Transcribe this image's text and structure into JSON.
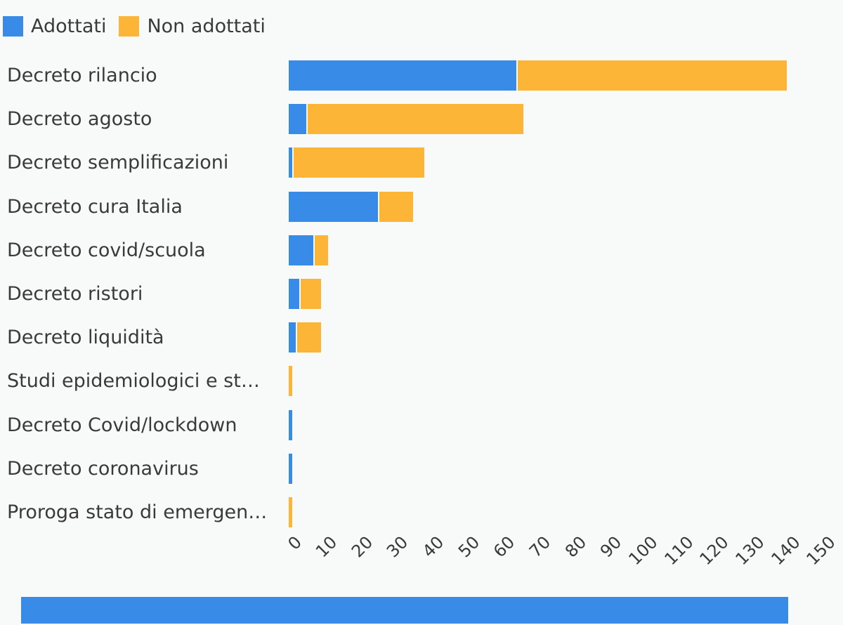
{
  "colors": {
    "background": "#F8F9F9",
    "text": "#3A3A3A",
    "adottati": "#398BE8",
    "non_adottati": "#FDB537",
    "bottom_strip": "#398BE8"
  },
  "legend": {
    "items": [
      {
        "label": "Adottati",
        "color": "#398BE8"
      },
      {
        "label": "Non adottati",
        "color": "#FDB537"
      }
    ]
  },
  "chart_data": {
    "type": "bar",
    "orientation": "horizontal",
    "stacked": true,
    "title": "",
    "xlabel": "",
    "ylabel": "",
    "xlim": [
      0,
      150
    ],
    "grid": false,
    "legend_position": "top-left",
    "categories": [
      "Decreto rilancio",
      "Decreto agosto",
      "Decreto semplificazioni",
      "Decreto cura Italia",
      "Decreto covid/scuola",
      "Decreto ristori",
      "Decreto liquidità",
      "Studi epidemiologici e st…",
      "Decreto Covid/lockdown",
      "Decreto coronavirus",
      "Proroga stato di emergen…"
    ],
    "series": [
      {
        "name": "Adottati",
        "color": "#398BE8",
        "values": [
          64,
          5,
          1,
          25,
          7,
          3,
          2,
          0,
          1,
          1,
          0
        ]
      },
      {
        "name": "Non adottati",
        "color": "#FDB537",
        "values": [
          76,
          61,
          37,
          10,
          4,
          6,
          7,
          1,
          0,
          0,
          1
        ]
      }
    ],
    "x_ticks": [
      0,
      10,
      20,
      30,
      40,
      50,
      60,
      70,
      80,
      90,
      100,
      110,
      120,
      130,
      140,
      150
    ]
  }
}
